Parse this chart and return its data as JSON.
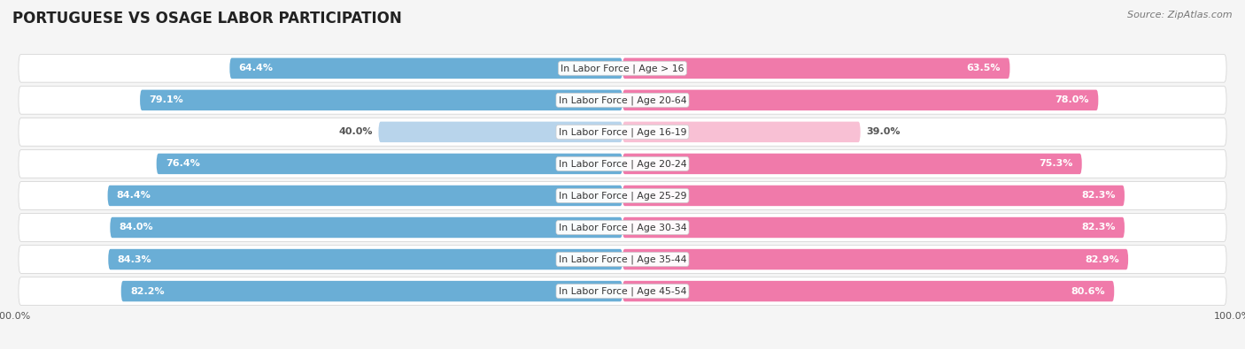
{
  "title": "PORTUGUESE VS OSAGE LABOR PARTICIPATION",
  "source": "Source: ZipAtlas.com",
  "categories": [
    "In Labor Force | Age > 16",
    "In Labor Force | Age 20-64",
    "In Labor Force | Age 16-19",
    "In Labor Force | Age 20-24",
    "In Labor Force | Age 25-29",
    "In Labor Force | Age 30-34",
    "In Labor Force | Age 35-44",
    "In Labor Force | Age 45-54"
  ],
  "portuguese_values": [
    64.4,
    79.1,
    40.0,
    76.4,
    84.4,
    84.0,
    84.3,
    82.2
  ],
  "osage_values": [
    63.5,
    78.0,
    39.0,
    75.3,
    82.3,
    82.3,
    82.9,
    80.6
  ],
  "portuguese_color": "#6aaed6",
  "portuguese_color_light": "#b8d4eb",
  "osage_color": "#f07aaa",
  "osage_color_light": "#f8c0d4",
  "row_bg_color": "#e8e8e8",
  "row_bg_color2": "#f0f0f0",
  "title_fontsize": 12,
  "bar_height": 0.65,
  "label_inside_color": "white",
  "label_outside_color": "#555555"
}
